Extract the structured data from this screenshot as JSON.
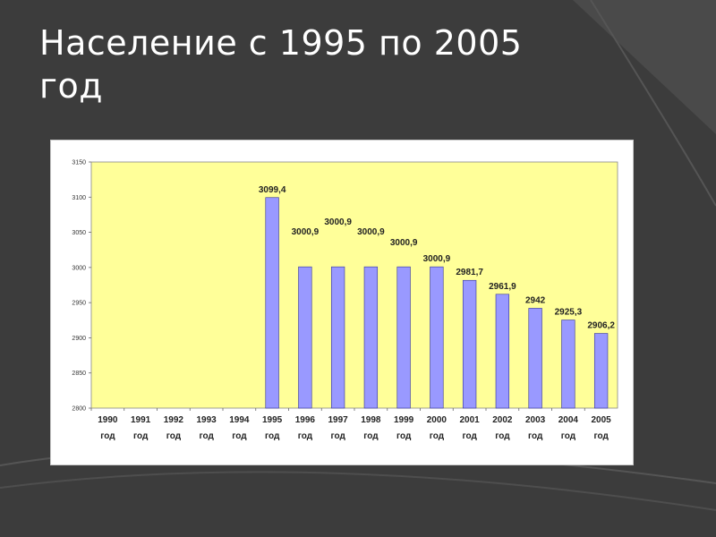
{
  "slide": {
    "title": "Население с 1995 по 2005 год"
  },
  "colors": {
    "background": "#3c3c3c",
    "plot_area": "#ffff99",
    "bar_fill": "#9999ff",
    "bar_stroke": "#333399"
  },
  "chart_data": {
    "type": "bar",
    "title": "",
    "xlabel": "",
    "ylabel": "",
    "ylim": [
      2800,
      3150
    ],
    "yticks": [
      "3150",
      "3100",
      "3050",
      "3000",
      "2950",
      "2900",
      "2850",
      "2800"
    ],
    "categories": [
      [
        "1990",
        "год"
      ],
      [
        "1991",
        "год"
      ],
      [
        "1992",
        "год"
      ],
      [
        "1993",
        "год"
      ],
      [
        "1994",
        "год"
      ],
      [
        "1995",
        "год"
      ],
      [
        "1996",
        "год"
      ],
      [
        "1997",
        "год"
      ],
      [
        "1998",
        "год"
      ],
      [
        "1999",
        "год"
      ],
      [
        "2000",
        "год"
      ],
      [
        "2001",
        "год"
      ],
      [
        "2002",
        "год"
      ],
      [
        "2003",
        "год"
      ],
      [
        "2004",
        "год"
      ],
      [
        "2005",
        "год"
      ]
    ],
    "values": [
      null,
      null,
      null,
      null,
      null,
      3099.4,
      3000.9,
      3000.9,
      3000.9,
      3000.9,
      3000.9,
      2981.7,
      2961.9,
      2942,
      2925.3,
      2906.2
    ],
    "data_labels": [
      "",
      "",
      "",
      "",
      "",
      "3099,4",
      "3000,9",
      "3000,9",
      "3000,9",
      "3000,9",
      "3000,9",
      "2981,7",
      "2961,9",
      "2942",
      "2925,3",
      "2906,2"
    ],
    "grid": false,
    "legend": "none"
  }
}
